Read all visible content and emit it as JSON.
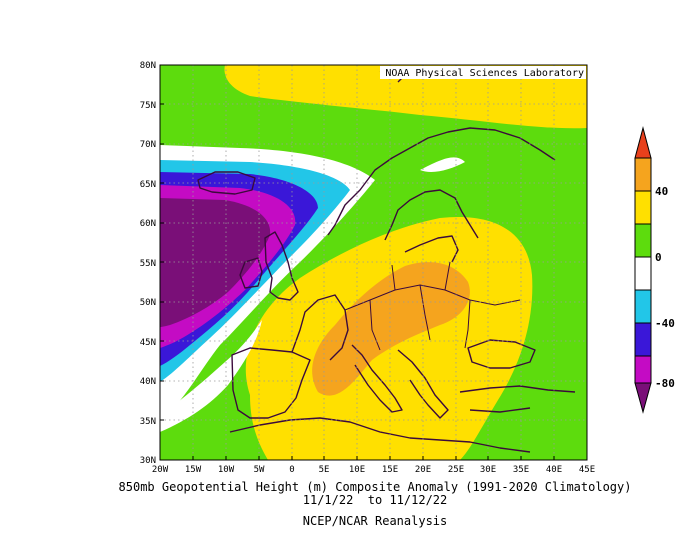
{
  "credit": "NOAA Physical Sciences Laboratory",
  "caption": {
    "line1": "850mb Geopotential Height (m) Composite Anomaly (1991-2020 Climatology)",
    "line2": "11/1/22  to 11/12/22",
    "line3": "NCEP/NCAR Reanalysis"
  },
  "map": {
    "lon_range": [
      -20,
      45
    ],
    "lat_range": [
      30,
      80
    ],
    "lon_ticks": [
      "20W",
      "15W",
      "10W",
      "5W",
      "0",
      "5E",
      "10E",
      "15E",
      "20E",
      "25E",
      "30E",
      "35E",
      "40E",
      "45E"
    ],
    "lat_ticks": [
      "80N",
      "75N",
      "70N",
      "65N",
      "60N",
      "55N",
      "50N",
      "45N",
      "40N",
      "35N",
      "30N"
    ],
    "gridlines": "dotted"
  },
  "colorbar": {
    "labels": [
      "40",
      "0",
      "-40",
      "-80"
    ],
    "colors": {
      "above_60": "#e8401c",
      "40_to_60": "#f5a41e",
      "20_to_40": "#ffe000",
      "0_to_20": "#5ddc0d",
      "-20_to_0": "#ffffff",
      "-40_to_-20": "#22c6e8",
      "-60_to_-40": "#3a17d8",
      "-80_to_-60": "#c40bc4",
      "below_-80": "#7a0f78"
    }
  },
  "colors": {
    "coastline": "#3b0a3b",
    "plot_background": "#5ddc0d"
  }
}
